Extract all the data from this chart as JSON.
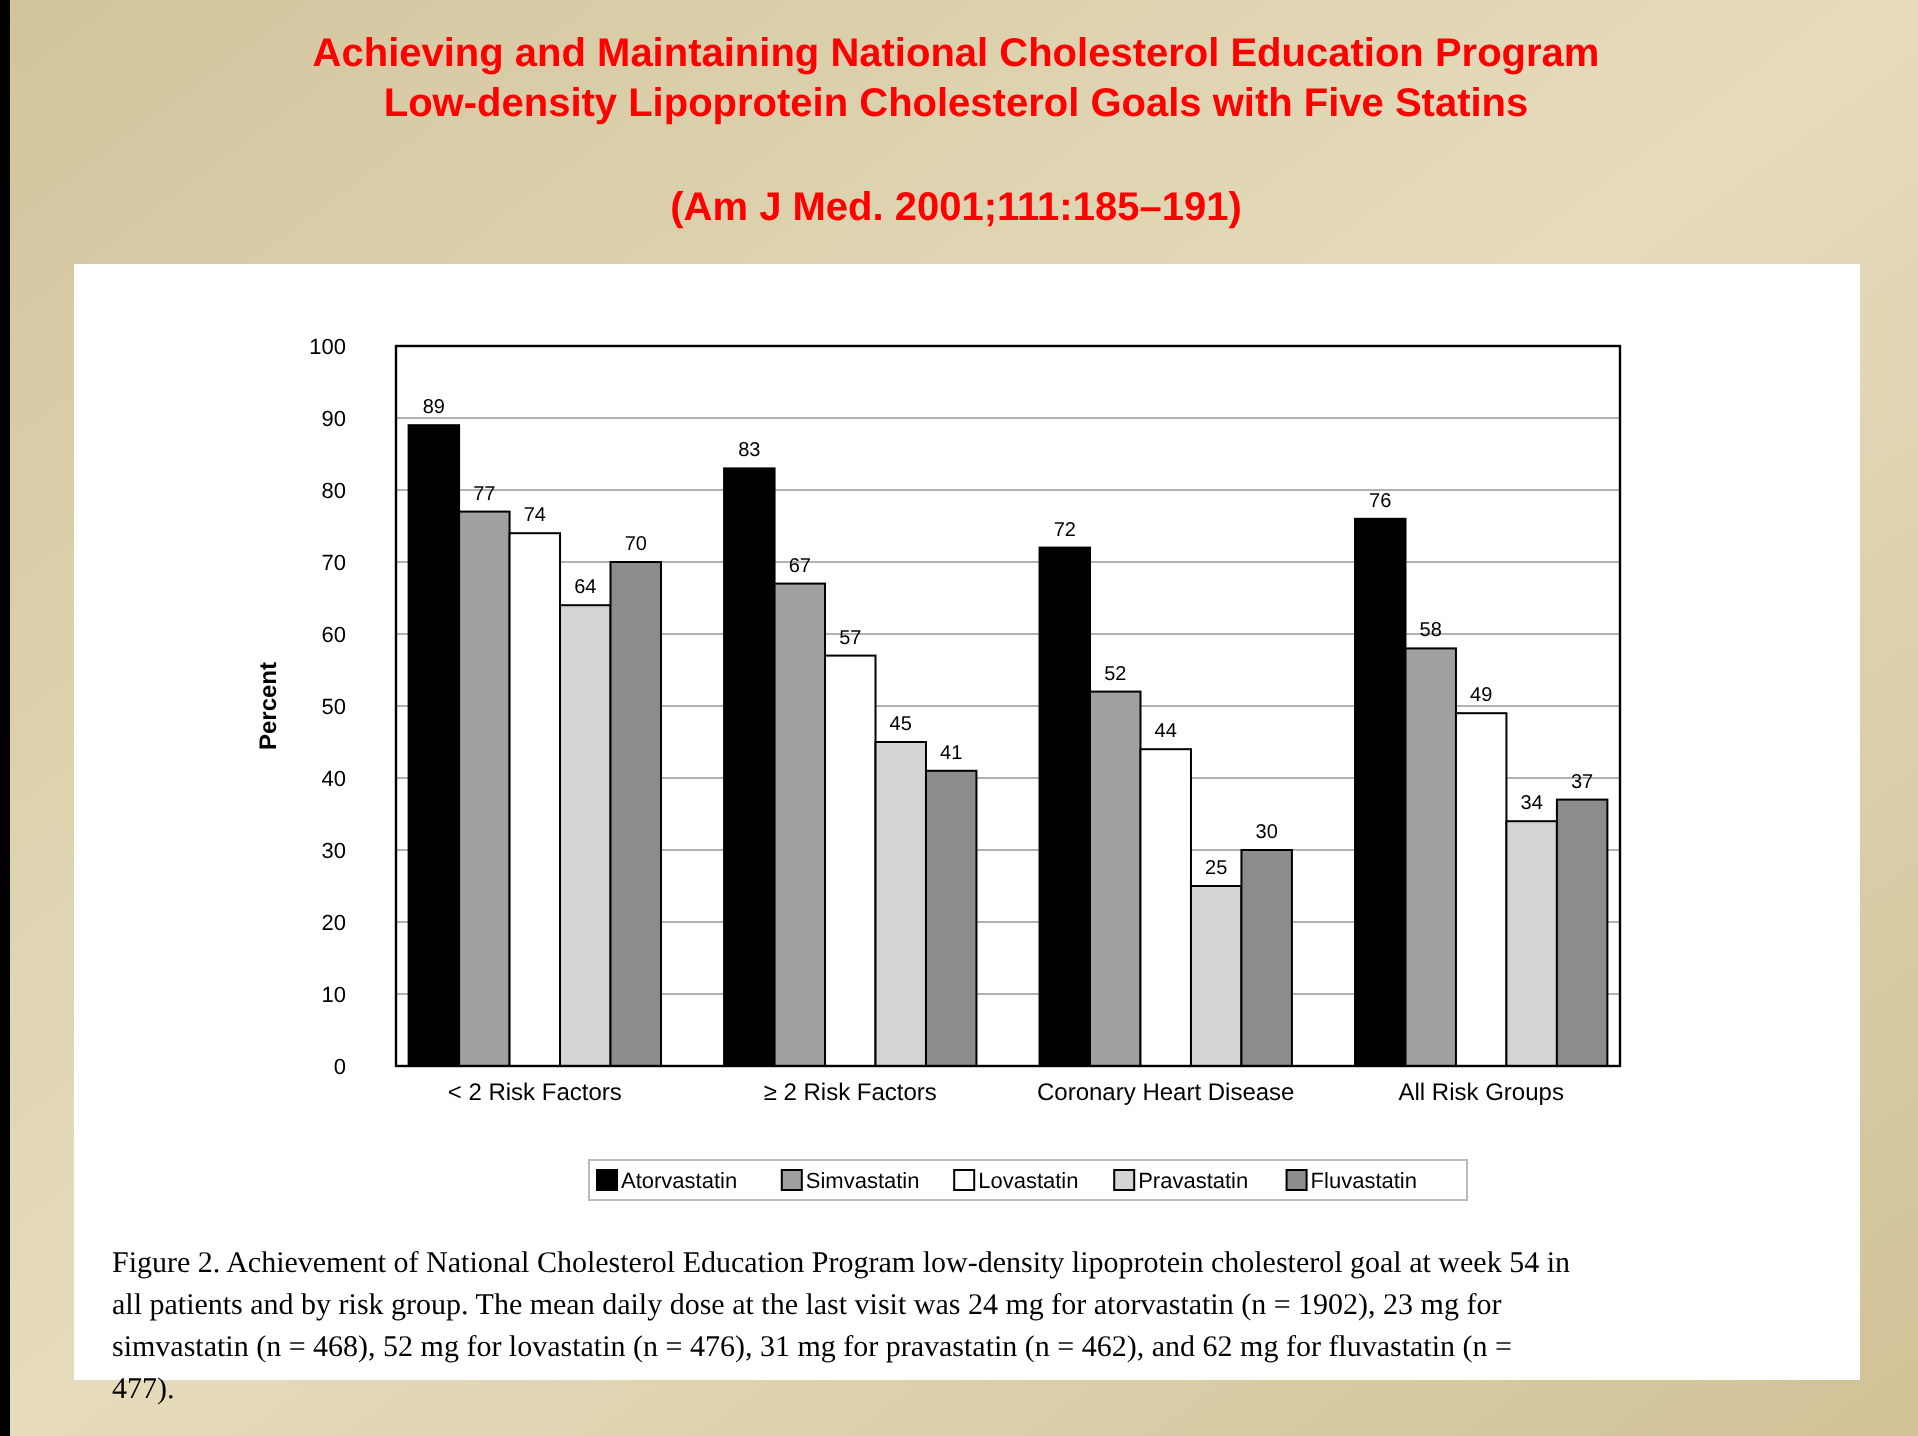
{
  "chart_data": {
    "type": "bar",
    "title": "Achieving and Maintaining National Cholesterol Education Program\nLow-density Lipoprotein Cholesterol Goals with Five Statins",
    "subtitle": "(Am J Med. 2001;111:185–191)",
    "ylabel": "Percent",
    "categories": [
      "< 2 Risk Factors",
      "≥ 2 Risk Factors",
      "Coronary Heart Disease",
      "All Risk Groups"
    ],
    "series": [
      {
        "name": "Atorvastatin",
        "color": "#000000",
        "values": [
          89,
          83,
          72,
          76
        ]
      },
      {
        "name": "Simvastatin",
        "color": "#a0a0a0",
        "values": [
          77,
          67,
          52,
          58
        ]
      },
      {
        "name": "Lovastatin",
        "color": "#ffffff",
        "values": [
          74,
          57,
          44,
          49
        ]
      },
      {
        "name": "Pravastatin",
        "color": "#d4d4d4",
        "values": [
          64,
          45,
          25,
          34
        ]
      },
      {
        "name": "Fluvastatin",
        "color": "#8c8c8c",
        "values": [
          70,
          41,
          30,
          37
        ]
      }
    ],
    "ylim": [
      0,
      100
    ],
    "yticks": [
      0,
      10,
      20,
      30,
      40,
      50,
      60,
      70,
      80,
      90,
      100
    ],
    "grid": "y",
    "legend": "bottom",
    "data_labels": true,
    "annotations": [
      "Figure 2. Achievement of National Cholesterol Education Program low-density lipoprotein cholesterol goal at week 54 in all patients and by risk group. The mean daily dose at the last visit was 24 mg for atorvastatin (n = 1902), 23 mg for simvastatin (n = 468), 52 mg for lovastatin (n = 476), 31 mg for pravastatin (n = 462), and 62 mg for fluvastatin (n = 477)."
    ]
  }
}
